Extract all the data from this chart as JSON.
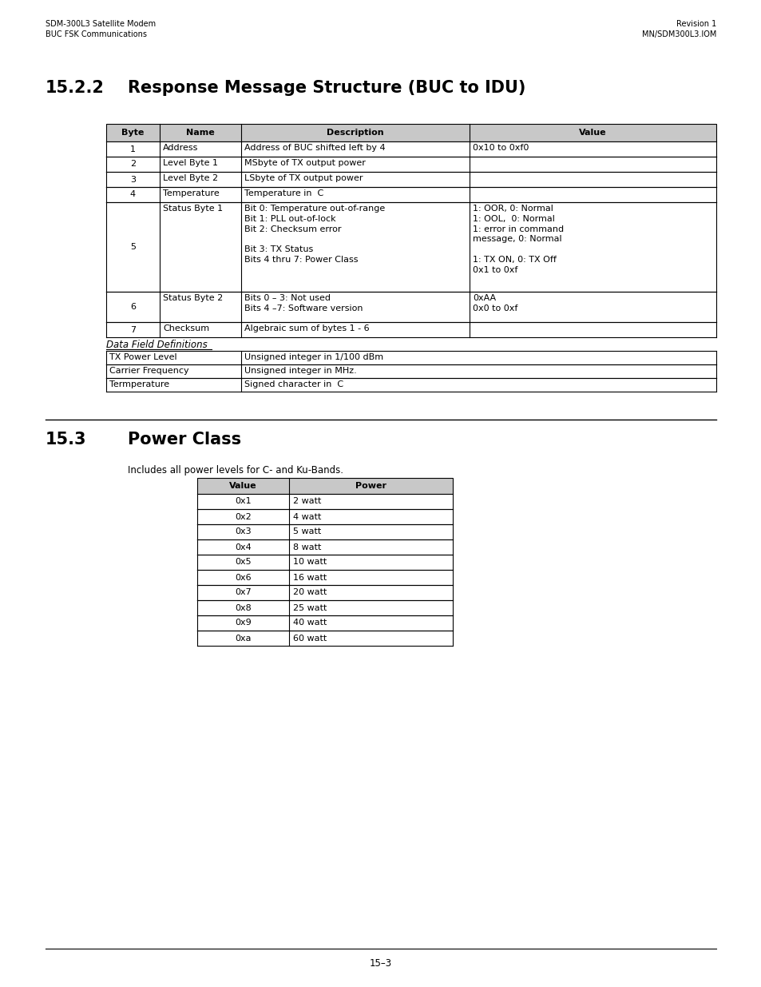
{
  "header_left_line1": "SDM-300L3 Satellite Modem",
  "header_left_line2": "BUC FSK Communications",
  "header_right_line1": "Revision 1",
  "header_right_line2": "MN/SDM300L3.IOM",
  "section_number": "15.2.2",
  "section_title": "Response Message Structure (BUC to IDU)",
  "table1_headers": [
    "Byte",
    "Name",
    "Description",
    "Value"
  ],
  "table1_rows": [
    [
      "1",
      "Address",
      "Address of BUC shifted left by 4",
      "0x10 to 0xf0"
    ],
    [
      "2",
      "Level Byte 1",
      "MSbyte of TX output power",
      ""
    ],
    [
      "3",
      "Level Byte 2",
      "LSbyte of TX output power",
      ""
    ],
    [
      "4",
      "Temperature",
      "Temperature in  C",
      ""
    ],
    [
      "5",
      "Status Byte 1",
      "Bit 0: Temperature out-of-range\nBit 1: PLL out-of-lock\nBit 2: Checksum error\n\nBit 3: TX Status\nBits 4 thru 7: Power Class",
      "1: OOR, 0: Normal\n1: OOL,  0: Normal\n1: error in command\nmessage, 0: Normal\n\n1: TX ON, 0: TX Off\n0x1 to 0xf"
    ],
    [
      "6",
      "Status Byte 2",
      "Bits 0 – 3: Not used\nBits 4 –7: Software version",
      "0xAA\n0x0 to 0xf"
    ],
    [
      "7",
      "Checksum",
      "Algebraic sum of bytes 1 - 6",
      ""
    ]
  ],
  "data_field_title": "Data Field Definitions",
  "data_field_rows": [
    [
      "TX Power Level",
      "Unsigned integer in 1/100 dBm"
    ],
    [
      "Carrier Frequency",
      "Unsigned integer in MHz."
    ],
    [
      "Termperature",
      "Signed character in  C"
    ]
  ],
  "section2_number": "15.3",
  "section2_title": "Power Class",
  "section2_subtitle": "Includes all power levels for C- and Ku-Bands.",
  "table2_headers": [
    "Value",
    "Power"
  ],
  "table2_rows": [
    [
      "0x1",
      "2 watt"
    ],
    [
      "0x2",
      "4 watt"
    ],
    [
      "0x3",
      "5 watt"
    ],
    [
      "0x4",
      "8 watt"
    ],
    [
      "0x5",
      "10 watt"
    ],
    [
      "0x6",
      "16 watt"
    ],
    [
      "0x7",
      "20 watt"
    ],
    [
      "0x8",
      "25 watt"
    ],
    [
      "0x9",
      "40 watt"
    ],
    [
      "0xa",
      "60 watt"
    ]
  ],
  "footer_text": "15–3",
  "bg_color": "#ffffff",
  "table_header_bg": "#c8c8c8",
  "text_color": "#000000",
  "font_size": 8.0,
  "header_font_size": 8.0,
  "title_font_size": 15.0,
  "small_font_size": 7.0
}
